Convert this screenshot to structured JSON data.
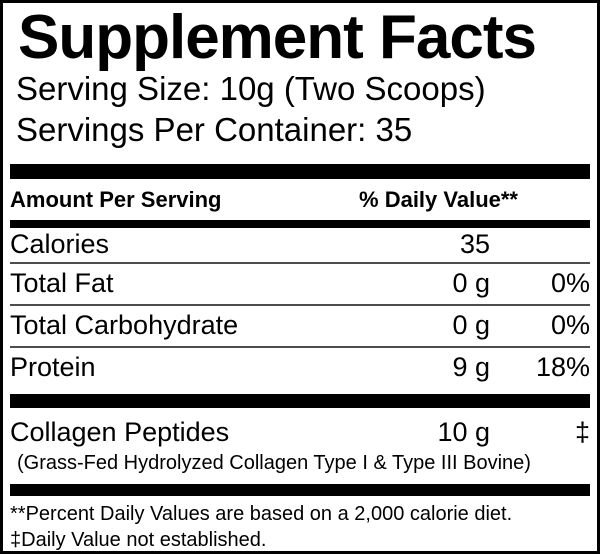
{
  "label": {
    "title": "Supplement Facts",
    "serving_size": "Serving Size: 10g (Two Scoops)",
    "servings_per_container": "Servings Per Container: 35",
    "columns": {
      "amount_header": "Amount Per Serving",
      "daily_value_header": "% Daily Value**"
    },
    "rows": [
      {
        "name": "Calories",
        "amount": "35",
        "daily_value": ""
      },
      {
        "name": "Total Fat",
        "amount": "0 g",
        "daily_value": "0%"
      },
      {
        "name": "Total Carbohydrate",
        "amount": "0 g",
        "daily_value": "0%"
      },
      {
        "name": "Protein",
        "amount": "9 g",
        "daily_value": "18%"
      }
    ],
    "ingredient": {
      "name": "Collagen Peptides",
      "amount": "10 g",
      "daily_value": "‡",
      "detail": "(Grass-Fed Hydrolyzed Collagen Type I & Type III Bovine)"
    },
    "footnotes": [
      "**Percent Daily Values are based on a 2,000 calorie diet.",
      "‡Daily Value not established."
    ],
    "colors": {
      "text": "#000000",
      "background": "#ffffff",
      "bar": "#000000",
      "separator": "#4d4d4d"
    }
  }
}
